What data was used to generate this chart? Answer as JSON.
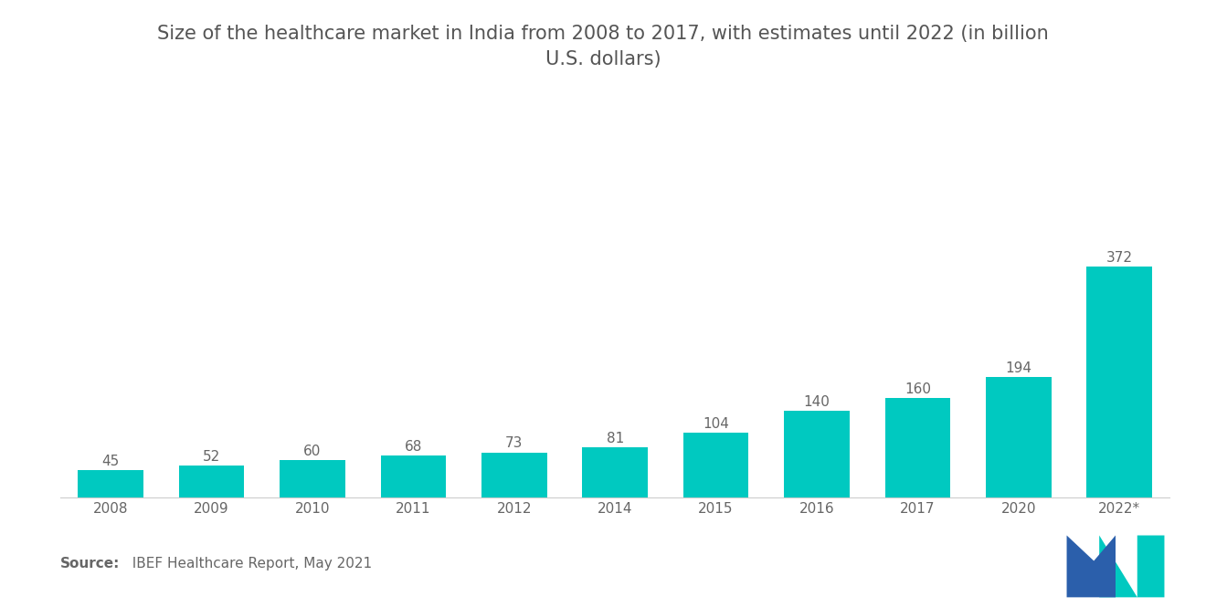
{
  "title_line1": "Size of the healthcare market in India from 2008 to 2017, with estimates until 2022 (in billion",
  "title_line2": "U.S. dollars)",
  "categories": [
    "2008",
    "2009",
    "2010",
    "2011",
    "2012",
    "2014",
    "2015",
    "2016",
    "2017",
    "2020",
    "2022*"
  ],
  "values": [
    45,
    52,
    60,
    68,
    73,
    81,
    104,
    140,
    160,
    194,
    372
  ],
  "bar_color": "#00C9C0",
  "value_label_color": "#666666",
  "title_color": "#555555",
  "source_bold": "Source:",
  "source_rest": "  IBEF Healthcare Report, May 2021",
  "background_color": "#ffffff",
  "title_fontsize": 15,
  "label_fontsize": 11,
  "tick_fontsize": 11,
  "source_fontsize": 11,
  "logo_blue": "#2B5FAB",
  "logo_teal": "#00C9C0"
}
